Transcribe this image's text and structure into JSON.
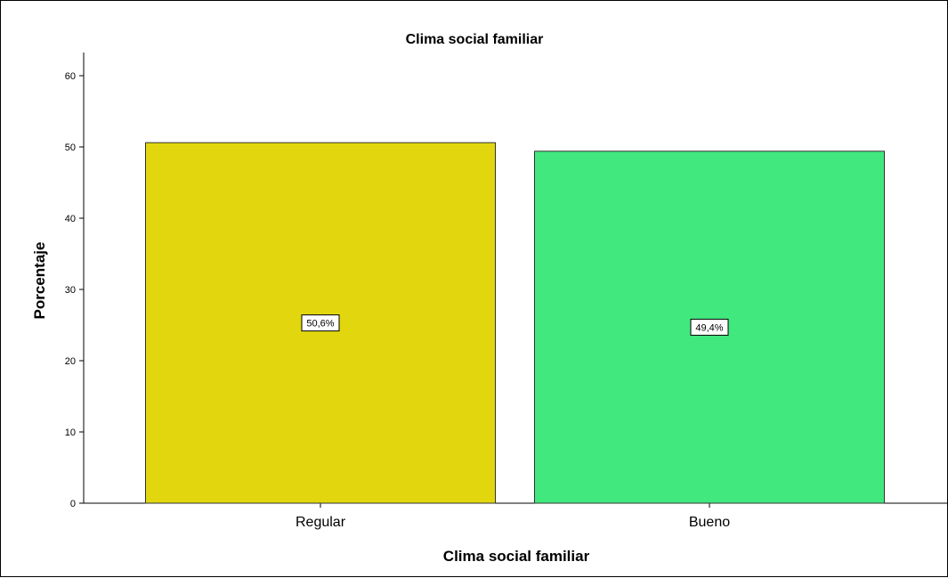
{
  "chart_data": {
    "type": "bar",
    "title": "Clima social familiar",
    "xlabel": "Clima social familiar",
    "ylabel": "Porcentaje",
    "categories": [
      "Regular",
      "Bueno"
    ],
    "values": [
      50.6,
      49.4
    ],
    "data_labels": [
      "50,6%",
      "49,4%"
    ],
    "bar_colors": [
      "#e2d70e",
      "#41e87e"
    ],
    "ylim": [
      0,
      60
    ],
    "yticks": [
      0,
      10,
      20,
      30,
      40,
      50,
      60
    ],
    "ytick_labels": [
      "0",
      "10",
      "20",
      "30",
      "40",
      "50",
      "60"
    ],
    "grid": false,
    "legend": "none"
  }
}
